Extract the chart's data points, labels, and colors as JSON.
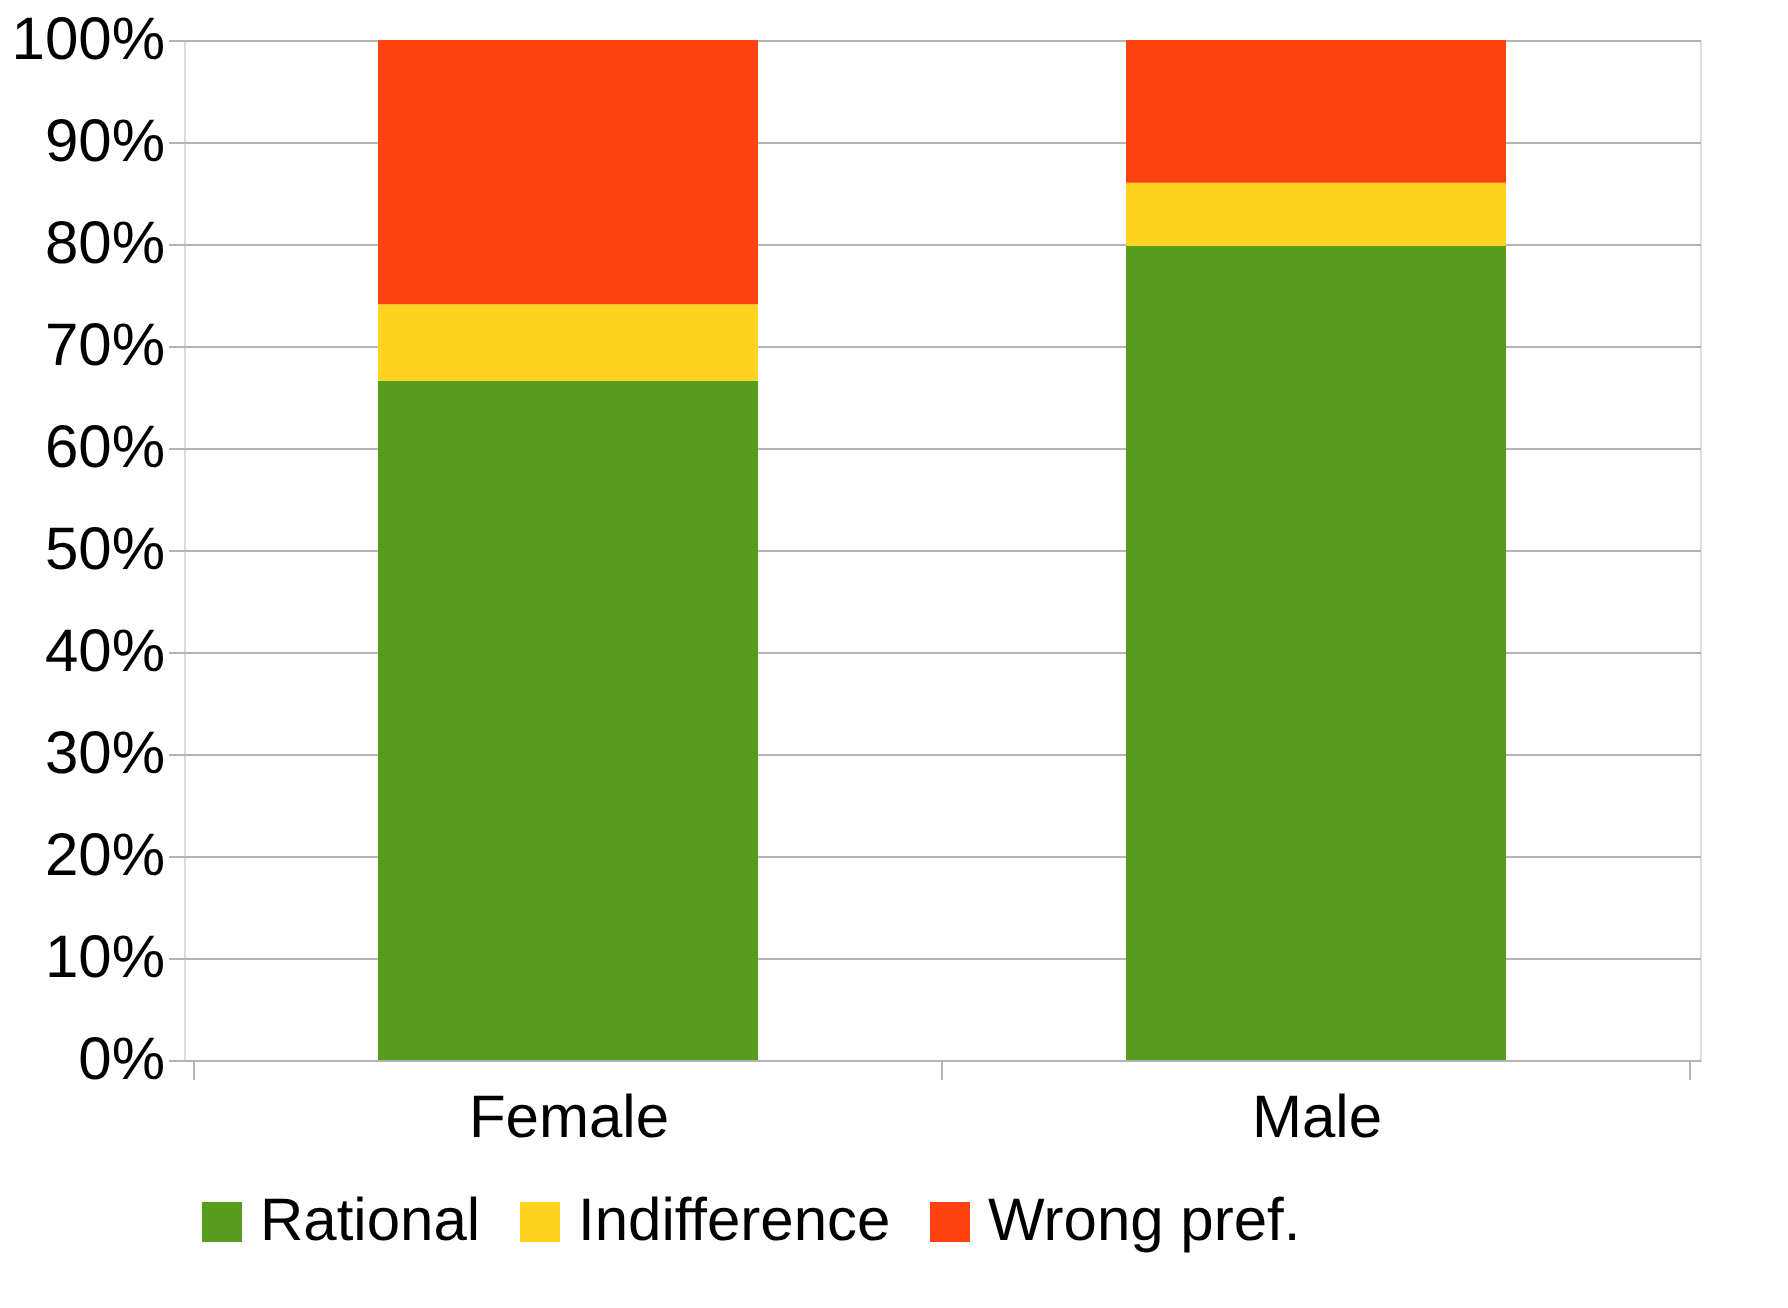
{
  "chart_data": {
    "type": "bar",
    "stacked": true,
    "categories": [
      "Female",
      "Male"
    ],
    "series": [
      {
        "name": "Rational",
        "color": "#579d1c",
        "values": [
          66.6,
          79.8
        ]
      },
      {
        "name": "Indifference",
        "color": "#ffd320",
        "values": [
          7.5,
          6.2
        ]
      },
      {
        "name": "Wrong pref.",
        "color": "#ff420e",
        "values": [
          25.9,
          14.0
        ]
      }
    ],
    "ylim": [
      0,
      100
    ],
    "yticks": [
      {
        "value": 0,
        "label": "0%"
      },
      {
        "value": 10,
        "label": "10%"
      },
      {
        "value": 20,
        "label": "20%"
      },
      {
        "value": 30,
        "label": "30%"
      },
      {
        "value": 40,
        "label": "40%"
      },
      {
        "value": 50,
        "label": "50%"
      },
      {
        "value": 60,
        "label": "60%"
      },
      {
        "value": 70,
        "label": "70%"
      },
      {
        "value": 80,
        "label": "80%"
      },
      {
        "value": 90,
        "label": "90%"
      },
      {
        "value": 100,
        "label": "100%"
      }
    ],
    "grid": "y",
    "legend": "bottom"
  }
}
